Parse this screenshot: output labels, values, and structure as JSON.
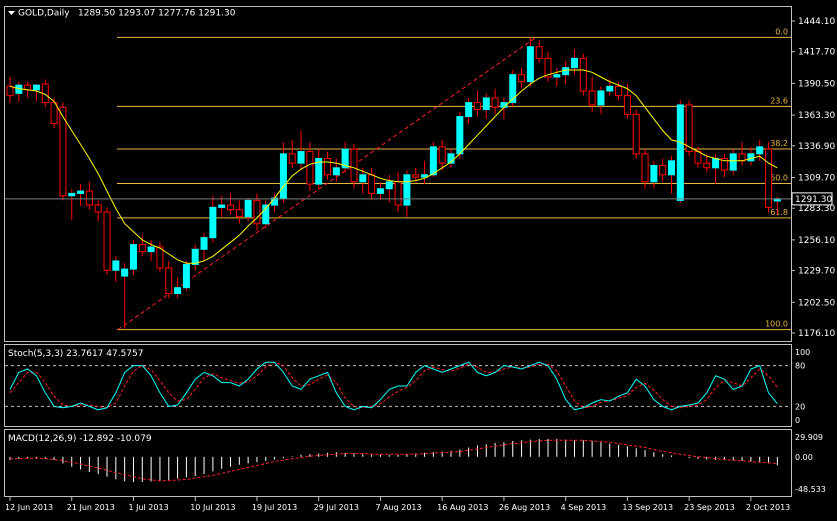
{
  "colors": {
    "background": "#000000",
    "frame": "#c0c0c0",
    "text": "#ffffff",
    "bull_candle": "#00ffff",
    "bear_candle": "#000000",
    "bear_outline": "#ff0000",
    "wick": "#ff0000",
    "moving_average": "#ffff00",
    "fibo": "#e8b740",
    "fibo_trend": "#ff2020",
    "stoch_main": "#00ffff",
    "stoch_signal": "#ff2020",
    "macd_hist": "#ffffff",
    "macd_signal": "#ff2020",
    "level_line": "#c0c0c0"
  },
  "chart_data": {
    "type": "candlestick",
    "title": "GOLD,Daily",
    "ohlc_text": "1289.50 1293.07 1277.76 1291.30",
    "current_price_label": "1291.30",
    "grid": false,
    "ylim": [
      1176.1,
      1444.1
    ],
    "y_ticks": [
      "1444.10",
      "1417.70",
      "1390.50",
      "1363.30",
      "1336.90",
      "1309.70",
      "1283.30",
      "1256.10",
      "1229.70",
      "1202.50",
      "1176.10"
    ],
    "x_ticks": [
      "12 Jun 2013",
      "21 Jun 2013",
      "1 Jul 2013",
      "10 Jul 2013",
      "19 Jul 2013",
      "29 Jul 2013",
      "7 Aug 2013",
      "16 Aug 2013",
      "26 Aug 2013",
      "4 Sep 2013",
      "13 Sep 2013",
      "23 Sep 2013",
      "2 Oct 2013"
    ],
    "candles": [
      {
        "o": 1388,
        "h": 1396,
        "l": 1374,
        "c": 1380
      },
      {
        "o": 1382,
        "h": 1392,
        "l": 1375,
        "c": 1389
      },
      {
        "o": 1389,
        "h": 1392,
        "l": 1378,
        "c": 1385
      },
      {
        "o": 1385,
        "h": 1390,
        "l": 1375,
        "c": 1389
      },
      {
        "o": 1390,
        "h": 1394,
        "l": 1370,
        "c": 1374
      },
      {
        "o": 1374,
        "h": 1378,
        "l": 1352,
        "c": 1356
      },
      {
        "o": 1370,
        "h": 1374,
        "l": 1290,
        "c": 1294
      },
      {
        "o": 1294,
        "h": 1300,
        "l": 1273,
        "c": 1296
      },
      {
        "o": 1296,
        "h": 1304,
        "l": 1285,
        "c": 1298
      },
      {
        "o": 1298,
        "h": 1306,
        "l": 1282,
        "c": 1286
      },
      {
        "o": 1286,
        "h": 1290,
        "l": 1272,
        "c": 1280
      },
      {
        "o": 1280,
        "h": 1284,
        "l": 1226,
        "c": 1230
      },
      {
        "o": 1230,
        "h": 1242,
        "l": 1220,
        "c": 1238
      },
      {
        "o": 1225,
        "h": 1236,
        "l": 1180,
        "c": 1231
      },
      {
        "o": 1231,
        "h": 1256,
        "l": 1226,
        "c": 1252
      },
      {
        "o": 1252,
        "h": 1260,
        "l": 1242,
        "c": 1246
      },
      {
        "o": 1246,
        "h": 1256,
        "l": 1238,
        "c": 1250
      },
      {
        "o": 1250,
        "h": 1254,
        "l": 1228,
        "c": 1232
      },
      {
        "o": 1232,
        "h": 1238,
        "l": 1206,
        "c": 1210
      },
      {
        "o": 1210,
        "h": 1224,
        "l": 1206,
        "c": 1215
      },
      {
        "o": 1215,
        "h": 1238,
        "l": 1212,
        "c": 1235
      },
      {
        "o": 1235,
        "h": 1252,
        "l": 1230,
        "c": 1248
      },
      {
        "o": 1248,
        "h": 1262,
        "l": 1238,
        "c": 1258
      },
      {
        "o": 1258,
        "h": 1294,
        "l": 1254,
        "c": 1284
      },
      {
        "o": 1284,
        "h": 1294,
        "l": 1276,
        "c": 1286
      },
      {
        "o": 1286,
        "h": 1296,
        "l": 1278,
        "c": 1282
      },
      {
        "o": 1282,
        "h": 1290,
        "l": 1270,
        "c": 1276
      },
      {
        "o": 1276,
        "h": 1292,
        "l": 1272,
        "c": 1290
      },
      {
        "o": 1290,
        "h": 1296,
        "l": 1264,
        "c": 1270
      },
      {
        "o": 1270,
        "h": 1290,
        "l": 1266,
        "c": 1286
      },
      {
        "o": 1286,
        "h": 1296,
        "l": 1280,
        "c": 1292
      },
      {
        "o": 1292,
        "h": 1340,
        "l": 1288,
        "c": 1330
      },
      {
        "o": 1330,
        "h": 1342,
        "l": 1318,
        "c": 1322
      },
      {
        "o": 1322,
        "h": 1350,
        "l": 1316,
        "c": 1332
      },
      {
        "o": 1332,
        "h": 1340,
        "l": 1298,
        "c": 1304
      },
      {
        "o": 1304,
        "h": 1334,
        "l": 1300,
        "c": 1326
      },
      {
        "o": 1326,
        "h": 1332,
        "l": 1308,
        "c": 1312
      },
      {
        "o": 1312,
        "h": 1326,
        "l": 1306,
        "c": 1318
      },
      {
        "o": 1318,
        "h": 1340,
        "l": 1314,
        "c": 1334
      },
      {
        "o": 1334,
        "h": 1338,
        "l": 1300,
        "c": 1306
      },
      {
        "o": 1306,
        "h": 1318,
        "l": 1296,
        "c": 1312
      },
      {
        "o": 1312,
        "h": 1318,
        "l": 1290,
        "c": 1296
      },
      {
        "o": 1296,
        "h": 1306,
        "l": 1290,
        "c": 1300
      },
      {
        "o": 1300,
        "h": 1312,
        "l": 1288,
        "c": 1306
      },
      {
        "o": 1306,
        "h": 1314,
        "l": 1280,
        "c": 1286
      },
      {
        "o": 1286,
        "h": 1316,
        "l": 1276,
        "c": 1312
      },
      {
        "o": 1312,
        "h": 1318,
        "l": 1306,
        "c": 1310
      },
      {
        "o": 1310,
        "h": 1324,
        "l": 1304,
        "c": 1312
      },
      {
        "o": 1312,
        "h": 1340,
        "l": 1310,
        "c": 1336
      },
      {
        "o": 1336,
        "h": 1342,
        "l": 1316,
        "c": 1322
      },
      {
        "o": 1322,
        "h": 1334,
        "l": 1318,
        "c": 1330
      },
      {
        "o": 1330,
        "h": 1366,
        "l": 1326,
        "c": 1362
      },
      {
        "o": 1362,
        "h": 1378,
        "l": 1356,
        "c": 1374
      },
      {
        "o": 1374,
        "h": 1384,
        "l": 1362,
        "c": 1368
      },
      {
        "o": 1368,
        "h": 1382,
        "l": 1360,
        "c": 1378
      },
      {
        "o": 1378,
        "h": 1386,
        "l": 1364,
        "c": 1370
      },
      {
        "o": 1370,
        "h": 1378,
        "l": 1360,
        "c": 1374
      },
      {
        "o": 1374,
        "h": 1402,
        "l": 1370,
        "c": 1398
      },
      {
        "o": 1398,
        "h": 1404,
        "l": 1386,
        "c": 1392
      },
      {
        "o": 1392,
        "h": 1430,
        "l": 1388,
        "c": 1422
      },
      {
        "o": 1422,
        "h": 1428,
        "l": 1408,
        "c": 1412
      },
      {
        "o": 1412,
        "h": 1418,
        "l": 1392,
        "c": 1396
      },
      {
        "o": 1396,
        "h": 1404,
        "l": 1388,
        "c": 1398
      },
      {
        "o": 1398,
        "h": 1410,
        "l": 1390,
        "c": 1404
      },
      {
        "o": 1404,
        "h": 1420,
        "l": 1398,
        "c": 1412
      },
      {
        "o": 1412,
        "h": 1416,
        "l": 1380,
        "c": 1384
      },
      {
        "o": 1384,
        "h": 1396,
        "l": 1366,
        "c": 1372
      },
      {
        "o": 1372,
        "h": 1388,
        "l": 1364,
        "c": 1384
      },
      {
        "o": 1384,
        "h": 1394,
        "l": 1380,
        "c": 1388
      },
      {
        "o": 1388,
        "h": 1392,
        "l": 1376,
        "c": 1380
      },
      {
        "o": 1380,
        "h": 1390,
        "l": 1360,
        "c": 1364
      },
      {
        "o": 1364,
        "h": 1368,
        "l": 1326,
        "c": 1330
      },
      {
        "o": 1330,
        "h": 1334,
        "l": 1300,
        "c": 1306
      },
      {
        "o": 1306,
        "h": 1324,
        "l": 1300,
        "c": 1320
      },
      {
        "o": 1320,
        "h": 1326,
        "l": 1306,
        "c": 1312
      },
      {
        "o": 1312,
        "h": 1328,
        "l": 1296,
        "c": 1324
      },
      {
        "o": 1290,
        "h": 1376,
        "l": 1288,
        "c": 1372
      },
      {
        "o": 1372,
        "h": 1376,
        "l": 1328,
        "c": 1332
      },
      {
        "o": 1332,
        "h": 1336,
        "l": 1318,
        "c": 1322
      },
      {
        "o": 1322,
        "h": 1330,
        "l": 1314,
        "c": 1318
      },
      {
        "o": 1318,
        "h": 1330,
        "l": 1304,
        "c": 1326
      },
      {
        "o": 1326,
        "h": 1330,
        "l": 1310,
        "c": 1316
      },
      {
        "o": 1316,
        "h": 1334,
        "l": 1312,
        "c": 1330
      },
      {
        "o": 1330,
        "h": 1340,
        "l": 1320,
        "c": 1324
      },
      {
        "o": 1324,
        "h": 1336,
        "l": 1320,
        "c": 1330
      },
      {
        "o": 1330,
        "h": 1342,
        "l": 1324,
        "c": 1336
      },
      {
        "o": 1334,
        "h": 1340,
        "l": 1280,
        "c": 1284
      },
      {
        "o": 1289.5,
        "h": 1293.07,
        "l": 1277.76,
        "c": 1291.3
      }
    ],
    "moving_average": [
      1388,
      1386,
      1385,
      1384,
      1381,
      1375,
      1362,
      1350,
      1338,
      1326,
      1313,
      1298,
      1283,
      1270,
      1263,
      1256,
      1252,
      1249,
      1244,
      1239,
      1236,
      1236,
      1238,
      1242,
      1248,
      1254,
      1260,
      1268,
      1275,
      1283,
      1292,
      1302,
      1311,
      1317,
      1321,
      1323,
      1323,
      1322,
      1320,
      1318,
      1315,
      1312,
      1309,
      1307,
      1306,
      1306,
      1307,
      1309,
      1313,
      1318,
      1323,
      1330,
      1338,
      1346,
      1354,
      1362,
      1370,
      1377,
      1384,
      1390,
      1395,
      1398,
      1400,
      1402,
      1402,
      1402,
      1400,
      1396,
      1392,
      1389,
      1386,
      1380,
      1370,
      1360,
      1350,
      1342,
      1340,
      1336,
      1332,
      1328,
      1326,
      1324,
      1324,
      1324,
      1326,
      1328,
      1322,
      1318
    ],
    "fibonacci": {
      "levels": [
        {
          "label": "0.0",
          "price": 1430
        },
        {
          "label": "23.6",
          "price": 1370.8
        },
        {
          "label": "38.2",
          "price": 1334.2
        },
        {
          "label": "50.0",
          "price": 1304.5
        },
        {
          "label": "61.8",
          "price": 1275
        },
        {
          "label": "100.0",
          "price": 1179
        }
      ],
      "trendline": {
        "from_price": 1179,
        "to_price": 1430
      }
    },
    "stochastic": {
      "label": "Stoch(5,3,3) 23.7617 47.5757",
      "ylim": [
        0,
        100
      ],
      "levels": [
        80,
        20
      ],
      "axis_labels": [
        "100",
        "80",
        "20",
        "0"
      ],
      "main": [
        45,
        70,
        75,
        65,
        40,
        20,
        18,
        20,
        25,
        20,
        15,
        18,
        40,
        70,
        80,
        80,
        65,
        40,
        20,
        22,
        40,
        60,
        70,
        65,
        55,
        55,
        50,
        60,
        75,
        85,
        85,
        70,
        50,
        45,
        60,
        65,
        70,
        40,
        20,
        15,
        20,
        18,
        30,
        45,
        50,
        50,
        70,
        80,
        75,
        70,
        75,
        80,
        85,
        70,
        65,
        70,
        80,
        78,
        75,
        80,
        85,
        80,
        60,
        30,
        15,
        18,
        25,
        30,
        28,
        35,
        40,
        60,
        50,
        30,
        20,
        15,
        20,
        22,
        25,
        40,
        65,
        60,
        45,
        50,
        75,
        80,
        40,
        24
      ],
      "signal": [
        40,
        55,
        70,
        70,
        55,
        35,
        22,
        20,
        22,
        22,
        20,
        18,
        25,
        50,
        72,
        80,
        74,
        58,
        40,
        28,
        30,
        45,
        62,
        68,
        62,
        58,
        54,
        56,
        65,
        78,
        85,
        80,
        62,
        50,
        52,
        60,
        66,
        55,
        32,
        20,
        18,
        20,
        24,
        34,
        42,
        48,
        58,
        72,
        78,
        74,
        72,
        76,
        82,
        78,
        70,
        70,
        75,
        78,
        76,
        78,
        82,
        82,
        72,
        50,
        28,
        18,
        20,
        26,
        28,
        32,
        36,
        48,
        54,
        44,
        30,
        20,
        18,
        20,
        22,
        30,
        48,
        58,
        55,
        50,
        62,
        75,
        65,
        48
      ]
    },
    "macd": {
      "label": "MACD(12,26,9) -12.892 -10.079",
      "ylim": [
        -48.533,
        29.909
      ],
      "axis_labels": [
        "29.909",
        "0.00",
        "-48.533"
      ],
      "histogram": [
        -5,
        -3,
        -2,
        -2,
        -3,
        -5,
        -10,
        -15,
        -19,
        -23,
        -26,
        -30,
        -34,
        -37,
        -38,
        -38,
        -37,
        -36,
        -35,
        -33,
        -31,
        -29,
        -26,
        -22,
        -18,
        -15,
        -12,
        -10,
        -8,
        -6,
        -4,
        -2,
        1,
        3,
        4,
        5,
        6,
        7,
        6,
        5,
        4,
        3,
        3,
        3,
        3,
        4,
        5,
        6,
        7,
        8,
        9,
        11,
        14,
        17,
        19,
        21,
        22,
        24,
        25,
        26,
        27,
        27,
        27,
        26,
        25,
        25,
        24,
        22,
        20,
        18,
        16,
        13,
        10,
        7,
        4,
        2,
        0,
        -2,
        -3,
        -4,
        -5,
        -5,
        -6,
        -6,
        -7,
        -8,
        -10,
        -12.9
      ],
      "signal": [
        -3,
        -3,
        -2,
        -2,
        -3,
        -4,
        -6,
        -8,
        -11,
        -14,
        -17,
        -20,
        -24,
        -27,
        -30,
        -33,
        -35,
        -36,
        -36,
        -35,
        -34,
        -32,
        -30,
        -28,
        -25,
        -22,
        -19,
        -16,
        -13,
        -10,
        -7,
        -5,
        -3,
        -1,
        1,
        2,
        3,
        4,
        5,
        5,
        5,
        4,
        4,
        4,
        4,
        4,
        4,
        5,
        6,
        6,
        7,
        8,
        10,
        12,
        14,
        16,
        18,
        20,
        21,
        23,
        24,
        25,
        25,
        25,
        25,
        25,
        24,
        23,
        22,
        20,
        18,
        16,
        14,
        11,
        8,
        6,
        4,
        2,
        0,
        -1,
        -3,
        -4,
        -5,
        -6,
        -7,
        -8,
        -9,
        -10.1
      ]
    }
  }
}
